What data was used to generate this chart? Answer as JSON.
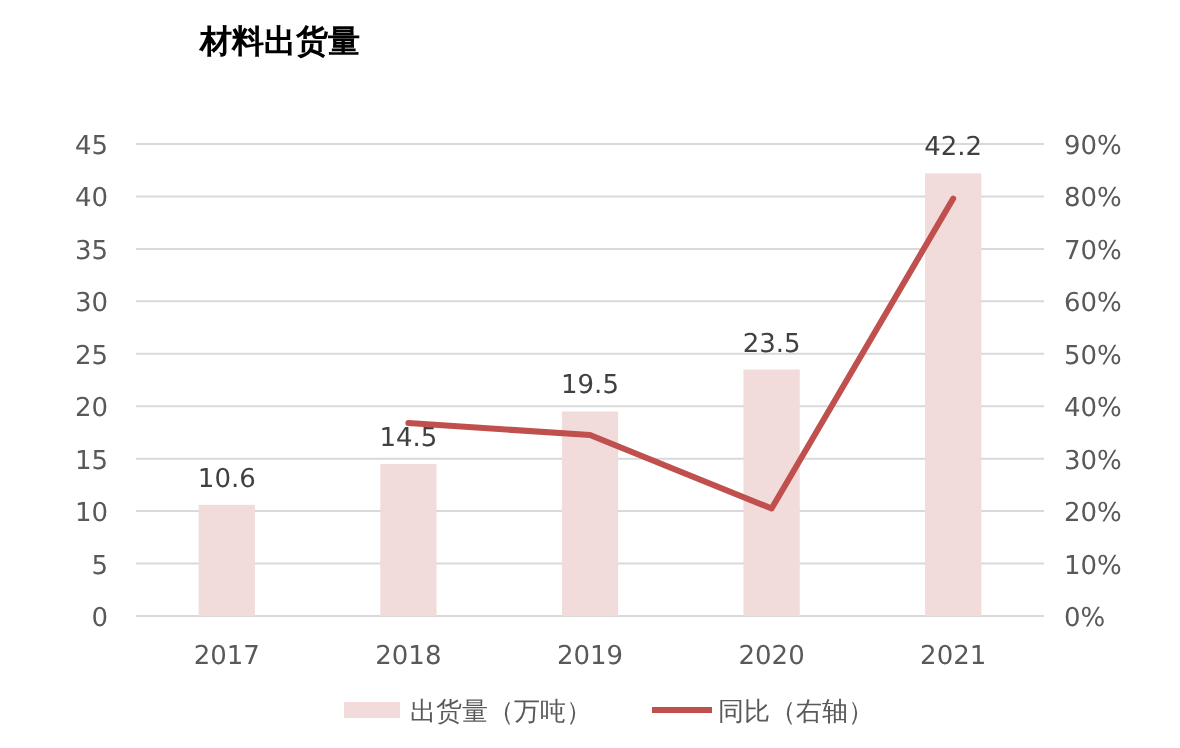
{
  "chart_data": {
    "type": "bar",
    "title": "材料出货量",
    "categories": [
      "2017",
      "2018",
      "2019",
      "2020",
      "2021"
    ],
    "series": [
      {
        "name": "出货量（万吨）",
        "color": "#f2dcdb",
        "values": [
          10.6,
          14.5,
          19.5,
          23.5,
          42.2
        ],
        "value_labels": [
          "10.6",
          "14.5",
          "19.5",
          "23.5",
          "42.2"
        ]
      },
      {
        "name": "同比（右轴）",
        "type": "line",
        "axis": "y2",
        "color": "#c0504d",
        "values": [
          null,
          36.8,
          34.5,
          20.5,
          79.6
        ]
      }
    ],
    "ylim": [
      0,
      45
    ],
    "yticks": [
      0,
      5,
      10,
      15,
      20,
      25,
      30,
      35,
      40,
      45
    ],
    "y2lim": [
      0,
      90
    ],
    "y2ticks": [
      {
        "value": 0,
        "label": "0%"
      },
      {
        "value": 10,
        "label": "10%"
      },
      {
        "value": 20,
        "label": "20%"
      },
      {
        "value": 30,
        "label": "30%"
      },
      {
        "value": 40,
        "label": "40%"
      },
      {
        "value": 50,
        "label": "50%"
      },
      {
        "value": 60,
        "label": "60%"
      },
      {
        "value": 70,
        "label": "70%"
      },
      {
        "value": 80,
        "label": "80%"
      },
      {
        "value": 90,
        "label": "90%"
      }
    ],
    "grid": "y",
    "legend": "bottom"
  }
}
